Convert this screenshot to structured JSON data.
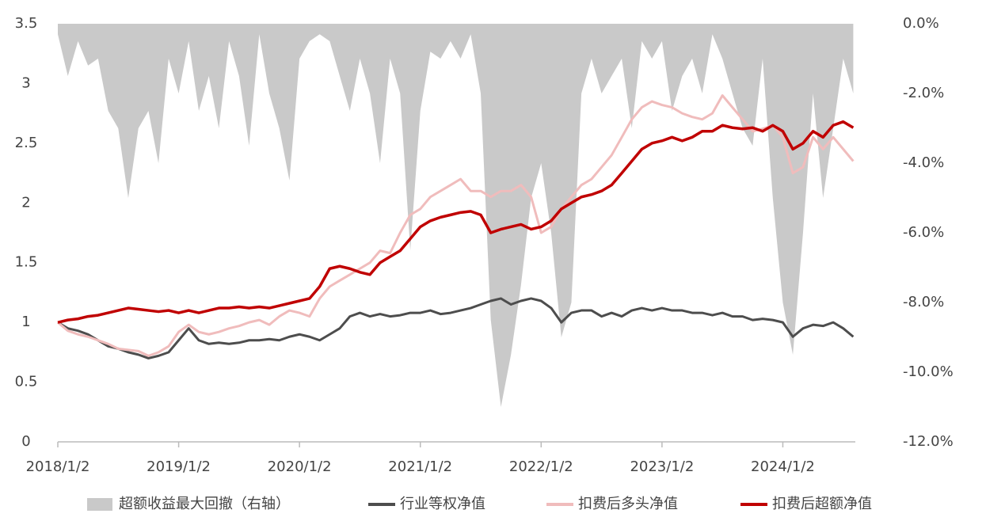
{
  "chart_data": {
    "type": "line",
    "x": [
      2018,
      2018.083,
      2018.167,
      2018.25,
      2018.333,
      2018.417,
      2018.5,
      2018.583,
      2018.667,
      2018.75,
      2018.833,
      2018.917,
      2019,
      2019.083,
      2019.167,
      2019.25,
      2019.333,
      2019.417,
      2019.5,
      2019.583,
      2019.667,
      2019.75,
      2019.833,
      2019.917,
      2020,
      2020.083,
      2020.167,
      2020.25,
      2020.333,
      2020.417,
      2020.5,
      2020.583,
      2020.667,
      2020.75,
      2020.833,
      2020.917,
      2021,
      2021.083,
      2021.167,
      2021.25,
      2021.333,
      2021.417,
      2021.5,
      2021.583,
      2021.667,
      2021.75,
      2021.833,
      2021.917,
      2022,
      2022.083,
      2022.167,
      2022.25,
      2022.333,
      2022.417,
      2022.5,
      2022.583,
      2022.667,
      2022.75,
      2022.833,
      2022.917,
      2023,
      2023.083,
      2023.167,
      2023.25,
      2023.333,
      2023.417,
      2023.5,
      2023.583,
      2023.667,
      2023.75,
      2023.833,
      2023.917,
      2024,
      2024.083,
      2024.167,
      2024.25,
      2024.333,
      2024.417,
      2024.5,
      2024.583
    ],
    "xlim": [
      2018,
      2024.6
    ],
    "xticks": [
      {
        "value": 2018,
        "label": "2018/1/2"
      },
      {
        "value": 2019,
        "label": "2019/1/2"
      },
      {
        "value": 2020,
        "label": "2020/1/2"
      },
      {
        "value": 2021,
        "label": "2021/1/2"
      },
      {
        "value": 2022,
        "label": "2022/1/2"
      },
      {
        "value": 2023,
        "label": "2023/1/2"
      },
      {
        "value": 2024,
        "label": "2024/1/2"
      }
    ],
    "ylim": [
      0,
      3.5
    ],
    "yticks": [
      0,
      0.5,
      1,
      1.5,
      2,
      2.5,
      3,
      3.5
    ],
    "y2lim": [
      -12,
      0
    ],
    "y2ticks": [
      {
        "value": -12,
        "label": "-12.0%"
      },
      {
        "value": -10,
        "label": "-10.0%"
      },
      {
        "value": -8,
        "label": "-8.0%"
      },
      {
        "value": -6,
        "label": "-6.0%"
      },
      {
        "value": -4,
        "label": "-4.0%"
      },
      {
        "value": -2,
        "label": "-2.0%"
      },
      {
        "value": 0,
        "label": "0.0%"
      }
    ],
    "series": [
      {
        "name": "超额收益最大回撤（右轴）",
        "type": "area",
        "axis": "y2",
        "color": "#c9c9c9",
        "values": [
          -0.3,
          -1.5,
          -0.5,
          -1.2,
          -1.0,
          -2.5,
          -3.0,
          -5.0,
          -3.0,
          -2.5,
          -4.0,
          -1.0,
          -2.0,
          -0.5,
          -2.5,
          -1.5,
          -3.0,
          -0.5,
          -1.5,
          -3.5,
          -0.3,
          -2.0,
          -3.0,
          -4.5,
          -1.0,
          -0.5,
          -0.3,
          -0.5,
          -1.5,
          -2.5,
          -1.0,
          -2.0,
          -4.0,
          -1.0,
          -2.0,
          -6.5,
          -2.5,
          -0.8,
          -1.0,
          -0.5,
          -1.0,
          -0.3,
          -2.0,
          -8.5,
          -11.0,
          -9.5,
          -7.5,
          -5.0,
          -4.0,
          -6.0,
          -9.0,
          -8.0,
          -2.0,
          -1.0,
          -2.0,
          -1.5,
          -1.0,
          -3.0,
          -0.5,
          -1.0,
          -0.5,
          -2.5,
          -1.5,
          -1.0,
          -2.0,
          -0.3,
          -1.0,
          -2.0,
          -3.0,
          -3.5,
          -1.0,
          -5.0,
          -8.0,
          -9.5,
          -6.0,
          -2.0,
          -5.0,
          -3.0,
          -1.0,
          -2.0
        ]
      },
      {
        "name": "行业等权净值",
        "color": "#4d4d4d",
        "values": [
          1.0,
          0.95,
          0.93,
          0.9,
          0.85,
          0.8,
          0.78,
          0.75,
          0.73,
          0.7,
          0.72,
          0.75,
          0.85,
          0.95,
          0.85,
          0.82,
          0.83,
          0.82,
          0.83,
          0.85,
          0.85,
          0.86,
          0.85,
          0.88,
          0.9,
          0.88,
          0.85,
          0.9,
          0.95,
          1.05,
          1.08,
          1.05,
          1.07,
          1.05,
          1.06,
          1.08,
          1.08,
          1.1,
          1.07,
          1.08,
          1.1,
          1.12,
          1.15,
          1.18,
          1.2,
          1.15,
          1.18,
          1.2,
          1.18,
          1.12,
          1.0,
          1.08,
          1.1,
          1.1,
          1.05,
          1.08,
          1.05,
          1.1,
          1.12,
          1.1,
          1.12,
          1.1,
          1.1,
          1.08,
          1.08,
          1.06,
          1.08,
          1.05,
          1.05,
          1.02,
          1.03,
          1.02,
          1.0,
          0.88,
          0.95,
          0.98,
          0.97,
          1.0,
          0.95,
          0.88
        ]
      },
      {
        "name": "扣费后多头净值",
        "color": "#f0bcbc",
        "values": [
          1.0,
          0.93,
          0.9,
          0.88,
          0.85,
          0.82,
          0.78,
          0.77,
          0.76,
          0.72,
          0.75,
          0.8,
          0.92,
          0.98,
          0.92,
          0.9,
          0.92,
          0.95,
          0.97,
          1.0,
          1.02,
          0.98,
          1.05,
          1.1,
          1.08,
          1.05,
          1.2,
          1.3,
          1.35,
          1.4,
          1.45,
          1.5,
          1.6,
          1.58,
          1.75,
          1.9,
          1.95,
          2.05,
          2.1,
          2.15,
          2.2,
          2.1,
          2.1,
          2.05,
          2.1,
          2.1,
          2.15,
          2.05,
          1.75,
          1.8,
          1.95,
          2.05,
          2.15,
          2.2,
          2.3,
          2.4,
          2.55,
          2.7,
          2.8,
          2.85,
          2.82,
          2.8,
          2.75,
          2.72,
          2.7,
          2.75,
          2.9,
          2.8,
          2.7,
          2.6,
          2.62,
          2.65,
          2.55,
          2.25,
          2.3,
          2.55,
          2.45,
          2.55,
          2.45,
          2.35
        ]
      },
      {
        "name": "扣费后超额净值",
        "color": "#c00000",
        "values": [
          1.0,
          1.02,
          1.03,
          1.05,
          1.06,
          1.08,
          1.1,
          1.12,
          1.11,
          1.1,
          1.09,
          1.1,
          1.08,
          1.1,
          1.08,
          1.1,
          1.12,
          1.12,
          1.13,
          1.12,
          1.13,
          1.12,
          1.14,
          1.16,
          1.18,
          1.2,
          1.3,
          1.45,
          1.47,
          1.45,
          1.42,
          1.4,
          1.5,
          1.55,
          1.6,
          1.7,
          1.8,
          1.85,
          1.88,
          1.9,
          1.92,
          1.93,
          1.9,
          1.75,
          1.78,
          1.8,
          1.82,
          1.78,
          1.8,
          1.85,
          1.95,
          2.0,
          2.05,
          2.07,
          2.1,
          2.15,
          2.25,
          2.35,
          2.45,
          2.5,
          2.52,
          2.55,
          2.52,
          2.55,
          2.6,
          2.6,
          2.65,
          2.63,
          2.62,
          2.63,
          2.6,
          2.65,
          2.6,
          2.45,
          2.5,
          2.6,
          2.55,
          2.65,
          2.68,
          2.63
        ]
      }
    ]
  }
}
